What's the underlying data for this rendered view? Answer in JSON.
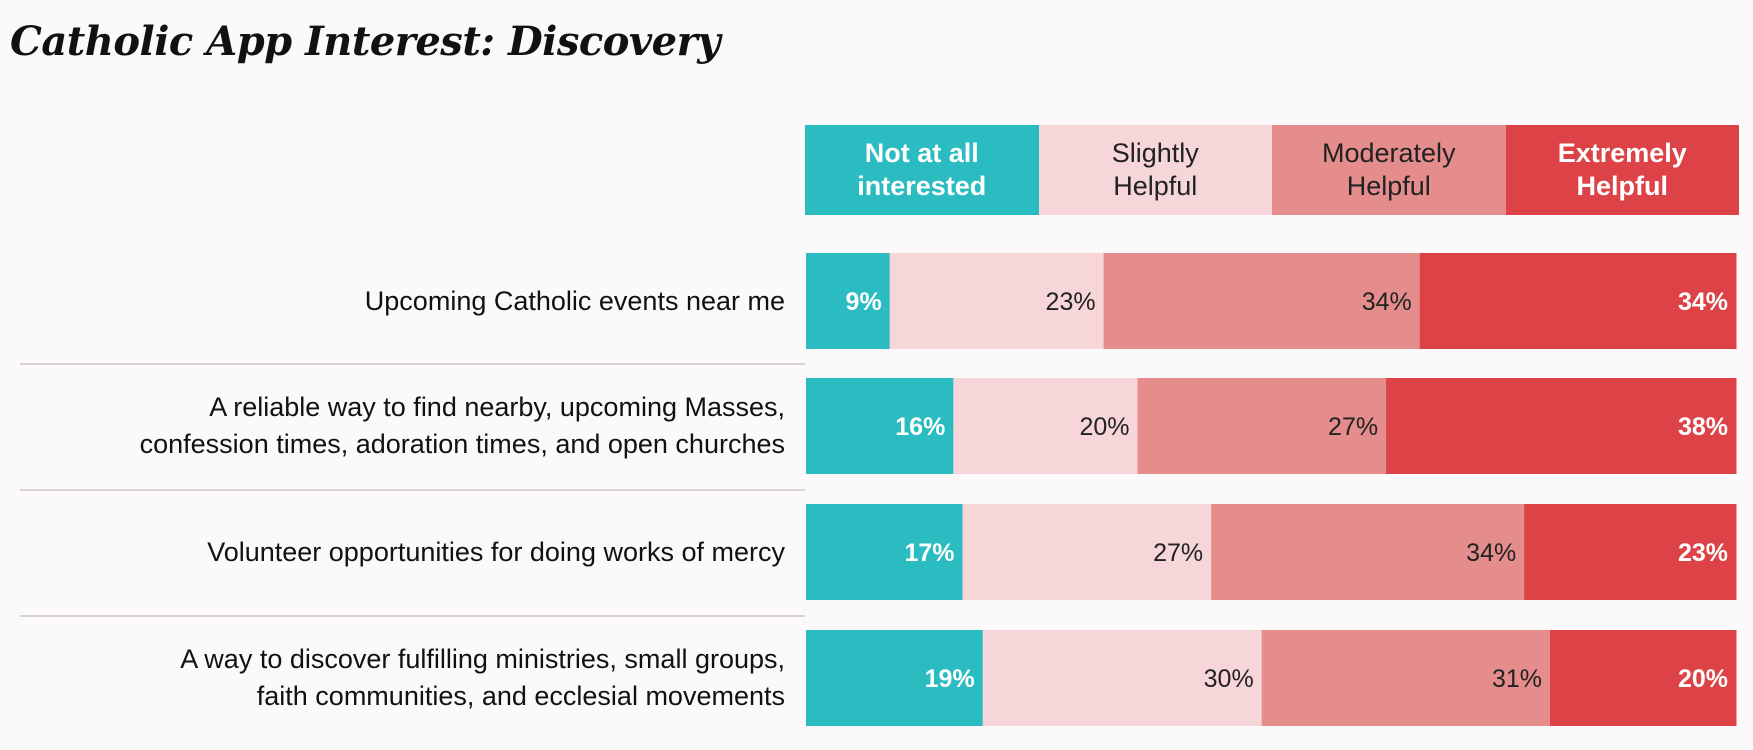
{
  "title": "Catholic App Interest:  Discovery",
  "colors": {
    "background": "#fbf9f9",
    "not_at_all": "#2bbcc1",
    "slightly": "#f6d6d8",
    "moderately": "#e58d8c",
    "extremely": "#dc4246"
  },
  "legend": [
    {
      "label_line1": "Not at all",
      "label_line2": "interested",
      "color": "#2bbcc1",
      "dark": true
    },
    {
      "label_line1": "Slightly",
      "label_line2": "Helpful",
      "color": "#f6d6d8",
      "dark": false
    },
    {
      "label_line1": "Moderately",
      "label_line2": "Helpful",
      "color": "#e58d8c",
      "dark": false
    },
    {
      "label_line1": "Extremely",
      "label_line2": "Helpful",
      "color": "#dc4246",
      "dark": true
    }
  ],
  "rows": [
    {
      "label_line1": "Upcoming Catholic events near me",
      "label_line2": ""
    },
    {
      "label_line1": "A reliable way to find nearby, upcoming Masses,",
      "label_line2": "confession times, adoration times, and open churches"
    },
    {
      "label_line1": "Volunteer opportunities for doing works of mercy",
      "label_line2": ""
    },
    {
      "label_line1": "A way to discover fulfilling ministries, small groups,",
      "label_line2": "faith communities, and ecclesial movements"
    }
  ],
  "chart_data": {
    "type": "bar",
    "orientation": "horizontal",
    "stacked": true,
    "normalized": true,
    "title": "Catholic App Interest:  Discovery",
    "categories": [
      "Upcoming Catholic events near me",
      "A reliable way to find nearby, upcoming Masses, confession times, adoration times, and open churches",
      "Volunteer opportunities for doing works of mercy",
      "A way to discover fulfilling ministries, small groups, faith communities, and ecclesial movements"
    ],
    "series": [
      {
        "name": "Not at all interested",
        "values": [
          9,
          16,
          17,
          19
        ],
        "labels": [
          "9%",
          "16%",
          "17%",
          "19%"
        ],
        "color": "#2bbcc1",
        "label_color": "#ffffff",
        "bold": true
      },
      {
        "name": "Slightly Helpful",
        "values": [
          23,
          20,
          27,
          30
        ],
        "labels": [
          "23%",
          "20%",
          "27%",
          "30%"
        ],
        "color": "#f6d6d8",
        "label_color": "#222222",
        "bold": false
      },
      {
        "name": "Moderately Helpful",
        "values": [
          34,
          27,
          34,
          31
        ],
        "labels": [
          "34%",
          "27%",
          "34%",
          "31%"
        ],
        "color": "#e58d8c",
        "label_color": "#222222",
        "bold": false
      },
      {
        "name": "Extremely Helpful",
        "values": [
          34,
          38,
          23,
          20
        ],
        "labels": [
          "34%",
          "38%",
          "23%",
          "20%"
        ],
        "color": "#dc4246",
        "label_color": "#ffffff",
        "bold": true
      }
    ],
    "xlim": [
      0,
      100
    ],
    "legend_position": "top"
  }
}
